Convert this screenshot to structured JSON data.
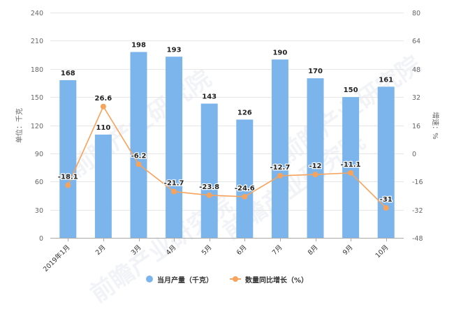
{
  "chart_data": {
    "type": "bar+line",
    "title": "",
    "categories": [
      "2019年1月",
      "2月",
      "3月",
      "4月",
      "5月",
      "6月",
      "7月",
      "8月",
      "9月",
      "10月"
    ],
    "series": [
      {
        "name": "当月产量（千克）",
        "type": "bar",
        "axis": "left",
        "color": "#7cb5ec",
        "values": [
          168,
          110,
          198,
          193,
          143,
          126,
          190,
          170,
          150,
          161
        ],
        "labels": [
          "168",
          "110",
          "198",
          "193",
          "143",
          "126",
          "190",
          "170",
          "150",
          "161"
        ]
      },
      {
        "name": "数量同比增长（%）",
        "type": "line",
        "axis": "right",
        "color": "#f7a35c",
        "values": [
          -18.1,
          26.6,
          -6.2,
          -21.7,
          -23.8,
          -24.6,
          -12.7,
          -12,
          -11.1,
          -31
        ],
        "labels": [
          "-18.1",
          "26.6",
          "-6.2",
          "-21.7",
          "-23.8",
          "-24.6",
          "-12.7",
          "-12",
          "-11.1",
          "-31"
        ]
      }
    ],
    "ylabel": "单位：千克",
    "y2label": "增速：%",
    "ylim": [
      0,
      240
    ],
    "yticks": [
      "240",
      "210",
      "180",
      "150",
      "120",
      "90",
      "60",
      "30",
      "0"
    ],
    "y2lim": [
      -48,
      80
    ],
    "y2ticks": [
      "80",
      "64",
      "48",
      "32",
      "16",
      "0",
      "-16",
      "-32",
      "-48"
    ],
    "grid": true,
    "legend_position": "bottom"
  },
  "legend": {
    "items": [
      {
        "label": "当月产量（千克）",
        "color": "#7cb5ec",
        "shape": "circle"
      },
      {
        "label": "数量同比增长（%）",
        "color": "#f7a35c",
        "shape": "line-marker"
      }
    ]
  },
  "watermark": {
    "text": "前瞻产业研究院"
  }
}
